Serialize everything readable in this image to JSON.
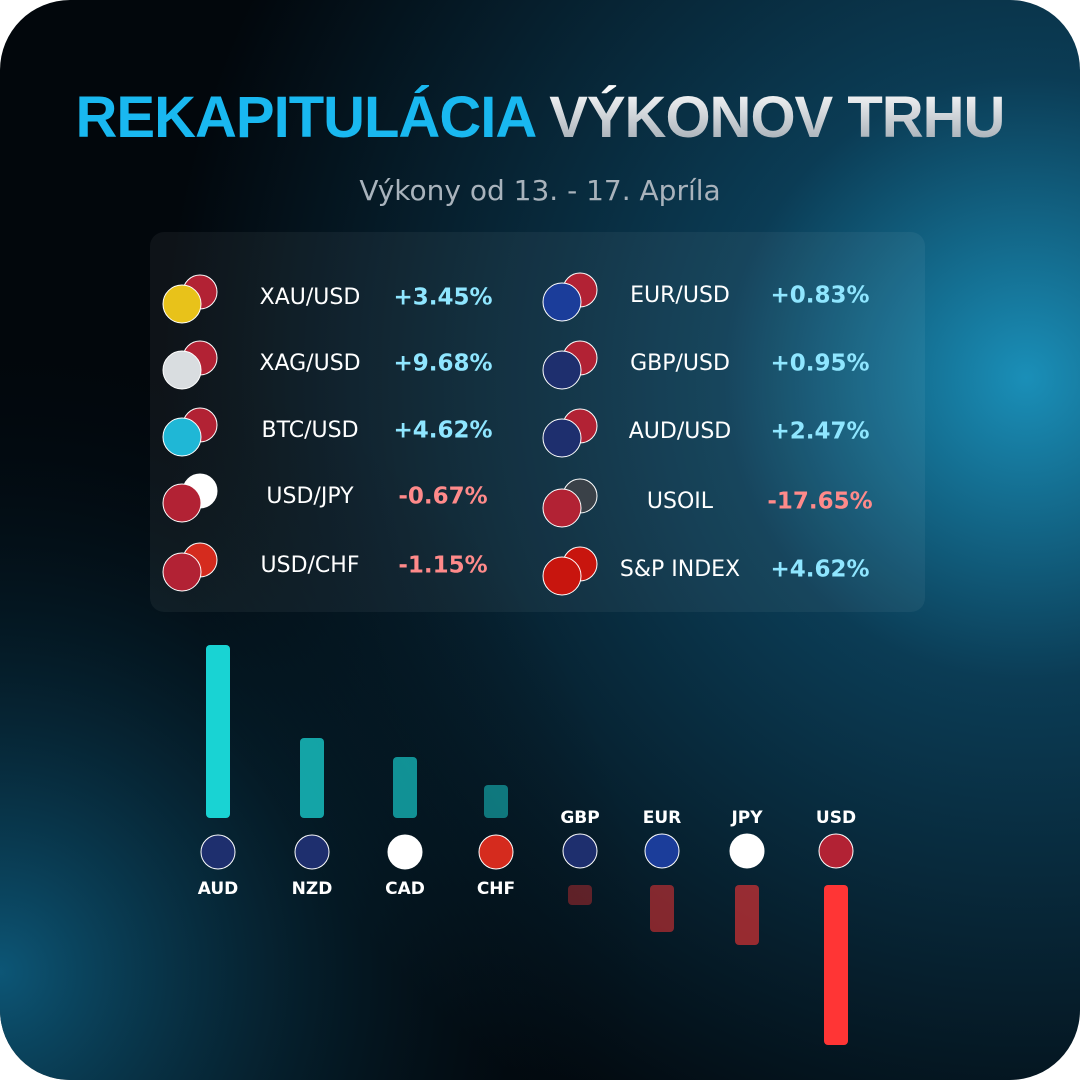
{
  "header": {
    "title_part1": "REKAPITULÁCIA",
    "title_part2": "VÝKONOV TRHU",
    "subtitle": "Výkony od 13. - 17. Apríla"
  },
  "instruments_left": [
    {
      "name": "XAU/USD",
      "change": "+3.45%"
    },
    {
      "name": "XAG/USD",
      "change": "+9.68%"
    },
    {
      "name": "BTC/USD",
      "change": "+4.62%"
    },
    {
      "name": "USD/JPY",
      "change": "-0.67%"
    },
    {
      "name": "USD/CHF",
      "change": "-1.15%"
    }
  ],
  "instruments_right": [
    {
      "name": "EUR/USD",
      "change": "+0.83%"
    },
    {
      "name": "GBP/USD",
      "change": "+0.95%"
    },
    {
      "name": "AUD/USD",
      "change": "+2.47%"
    },
    {
      "name": "USOIL",
      "change": "-17.65%"
    },
    {
      "name": "S&P INDEX",
      "change": "+4.62%"
    }
  ],
  "currency_strength": {
    "categories": [
      "AUD",
      "NZD",
      "CAD",
      "CHF",
      "GBP",
      "EUR",
      "JPY",
      "USD"
    ],
    "values": [
      173,
      80,
      61,
      33,
      -20,
      -47,
      -60,
      -160
    ]
  }
}
